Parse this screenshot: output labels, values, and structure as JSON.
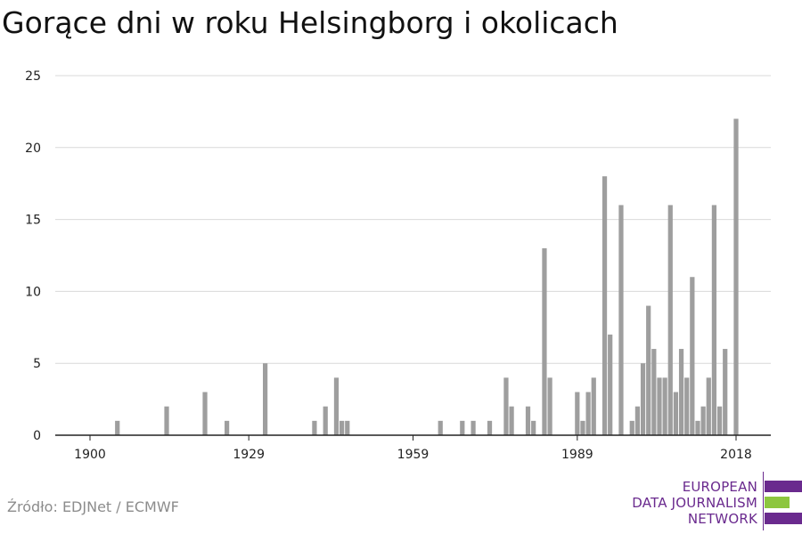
{
  "title": "Gorące dni w roku Helsingborg i okolicach",
  "source": "Źródło: EDJNet / ECMWF",
  "logo": {
    "lines": [
      "EUROPEAN",
      "DATA JOURNALISM",
      "NETWORK"
    ],
    "colors": {
      "purple": "#6a2a8e",
      "green": "#8dc63f"
    }
  },
  "colors": {
    "bar": "#9e9e9e",
    "grid": "#d9d9d9",
    "axis": "#222222"
  },
  "chart_data": {
    "type": "bar",
    "title": "Gorące dni w roku Helsingborg i okolicach",
    "xlabel": "",
    "ylabel": "",
    "xlim": [
      1900,
      2018
    ],
    "ylim": [
      0,
      25
    ],
    "yticks": [
      0,
      5,
      10,
      15,
      20,
      25
    ],
    "xticks": [
      1900,
      1929,
      1959,
      1989,
      2018
    ],
    "grid": true,
    "x": [
      1905,
      1914,
      1921,
      1925,
      1932,
      1941,
      1943,
      1945,
      1946,
      1947,
      1964,
      1968,
      1970,
      1973,
      1976,
      1977,
      1980,
      1981,
      1983,
      1984,
      1989,
      1990,
      1991,
      1992,
      1994,
      1995,
      1997,
      1999,
      2000,
      2001,
      2002,
      2003,
      2004,
      2005,
      2006,
      2007,
      2008,
      2009,
      2010,
      2011,
      2012,
      2013,
      2014,
      2015,
      2016,
      2018
    ],
    "values": [
      1,
      2,
      3,
      1,
      5,
      1,
      2,
      4,
      1,
      1,
      1,
      1,
      1,
      1,
      4,
      2,
      2,
      1,
      13,
      4,
      3,
      1,
      3,
      4,
      18,
      7,
      16,
      1,
      2,
      5,
      9,
      6,
      4,
      4,
      16,
      3,
      6,
      4,
      11,
      1,
      2,
      4,
      16,
      2,
      6,
      22
    ]
  }
}
